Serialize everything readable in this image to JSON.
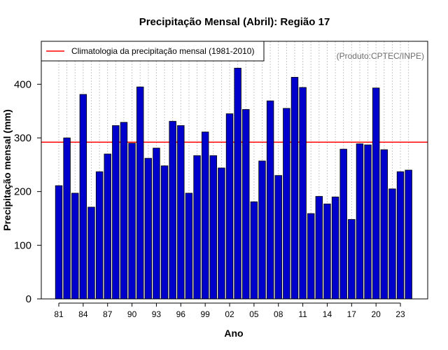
{
  "chart_data": {
    "type": "bar",
    "title": "Precipitação Mensal (Abril): Região 17",
    "xlabel": "Ano",
    "ylabel": "Precipitação mensal (mm)",
    "ylim": [
      0,
      480
    ],
    "yticks": [
      0,
      100,
      200,
      300,
      400
    ],
    "categories": [
      "81",
      "82",
      "83",
      "84",
      "85",
      "86",
      "87",
      "88",
      "89",
      "90",
      "91",
      "92",
      "93",
      "94",
      "95",
      "96",
      "97",
      "98",
      "99",
      "00",
      "01",
      "02",
      "03",
      "04",
      "05",
      "06",
      "07",
      "08",
      "09",
      "10",
      "11",
      "12",
      "13",
      "14",
      "15",
      "16",
      "17",
      "18",
      "19",
      "20",
      "21",
      "22",
      "23",
      "24"
    ],
    "xtick_labels": [
      "81",
      "84",
      "87",
      "90",
      "93",
      "96",
      "99",
      "02",
      "05",
      "08",
      "11",
      "14",
      "17",
      "20",
      "23"
    ],
    "series": [
      {
        "name": "Precipitação mensal",
        "color": "#0000cc",
        "values": [
          211,
          300,
          197,
          381,
          171,
          237,
          270,
          323,
          329,
          290,
          395,
          262,
          281,
          248,
          331,
          323,
          197,
          267,
          311,
          267,
          244,
          345,
          430,
          353,
          181,
          257,
          369,
          230,
          355,
          413,
          394,
          159,
          191,
          177,
          190,
          279,
          148,
          289,
          287,
          393,
          278,
          205,
          237,
          240
        ]
      }
    ],
    "reference_line": {
      "label": "Climatologia da precipitação mensal (1981-2010)",
      "value": 292,
      "color": "#ff0000"
    },
    "legend": {
      "position": "top-left",
      "entries": [
        "Climatologia da precipitação mensal (1981-2010)"
      ]
    },
    "annotation": "(Produto:CPTEC/INPE)",
    "grid": "vertical-dotted"
  }
}
